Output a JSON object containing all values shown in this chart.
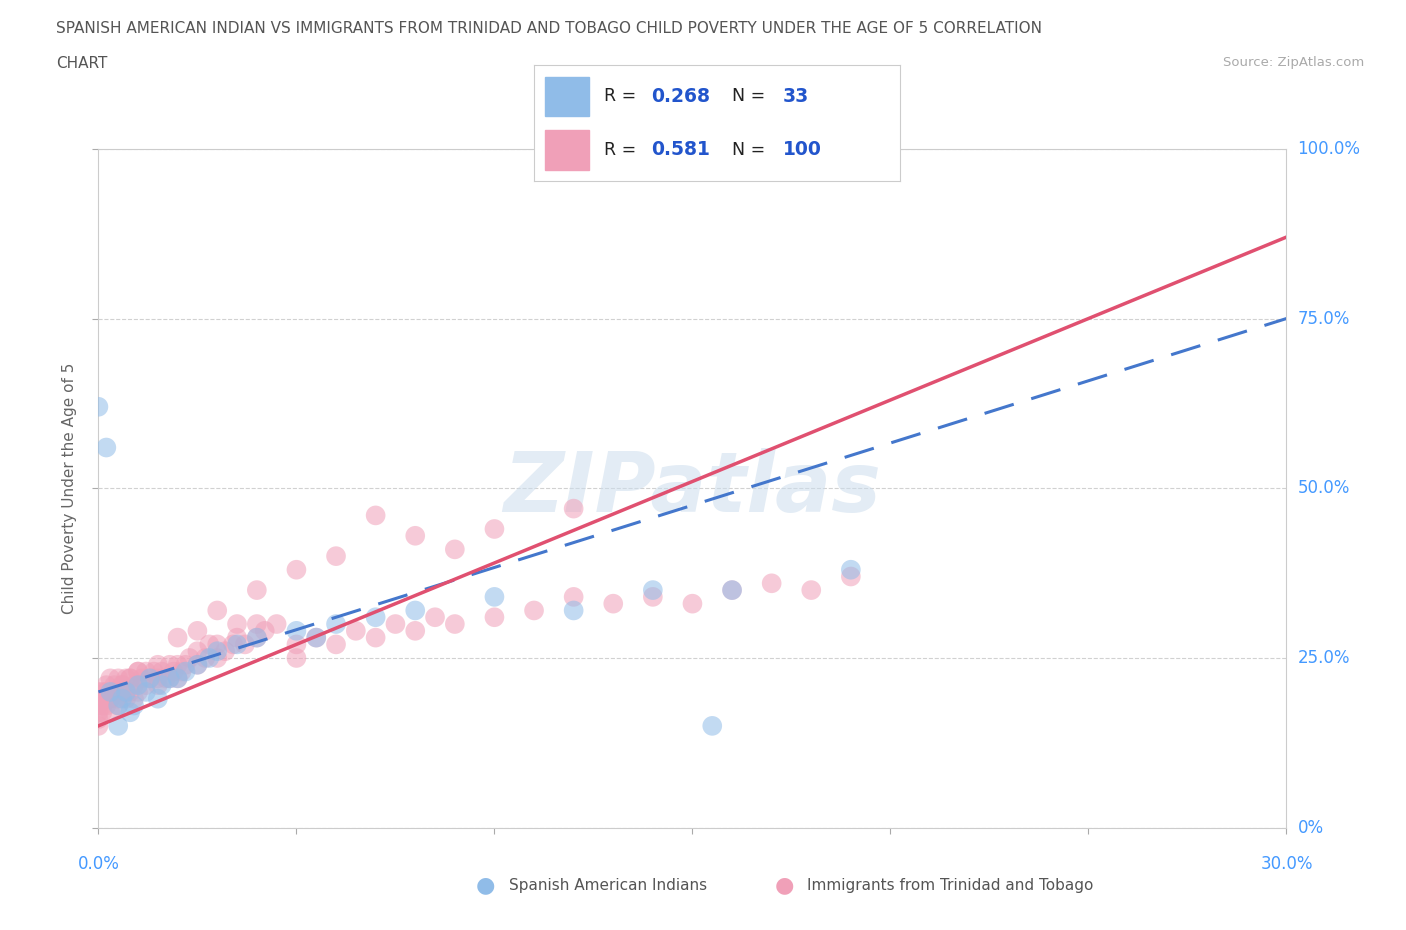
{
  "title_line1": "SPANISH AMERICAN INDIAN VS IMMIGRANTS FROM TRINIDAD AND TOBAGO CHILD POVERTY UNDER THE AGE OF 5 CORRELATION",
  "title_line2": "CHART",
  "source": "Source: ZipAtlas.com",
  "R1": "0.268",
  "N1": "33",
  "R2": "0.581",
  "N2": "100",
  "color1": "#90bce8",
  "color2": "#f0a0b8",
  "line1_color": "#4477cc",
  "line2_color": "#e05070",
  "series1_label": "Spanish American Indians",
  "series2_label": "Immigrants from Trinidad and Tobago",
  "axis_label_color": "#4499ff",
  "title_color": "#555555",
  "watermark_color": "#ccdded",
  "legend_R_N_color": "#2255cc",
  "background": "#ffffff",
  "grid_color": "#cccccc",
  "ylabel": "Child Poverty Under the Age of 5",
  "blue_x": [
    0.0,
    0.002,
    0.003,
    0.005,
    0.005,
    0.006,
    0.007,
    0.008,
    0.009,
    0.01,
    0.012,
    0.013,
    0.015,
    0.016,
    0.018,
    0.02,
    0.022,
    0.025,
    0.028,
    0.03,
    0.035,
    0.04,
    0.05,
    0.055,
    0.06,
    0.07,
    0.08,
    0.1,
    0.12,
    0.14,
    0.155,
    0.16,
    0.19
  ],
  "blue_y": [
    0.62,
    0.56,
    0.2,
    0.18,
    0.15,
    0.19,
    0.2,
    0.17,
    0.18,
    0.21,
    0.2,
    0.22,
    0.19,
    0.21,
    0.22,
    0.22,
    0.23,
    0.24,
    0.25,
    0.26,
    0.27,
    0.28,
    0.29,
    0.28,
    0.3,
    0.31,
    0.32,
    0.34,
    0.32,
    0.35,
    0.15,
    0.35,
    0.38
  ],
  "pink_x": [
    0.0,
    0.0,
    0.0,
    0.0,
    0.001,
    0.001,
    0.002,
    0.002,
    0.003,
    0.003,
    0.004,
    0.004,
    0.005,
    0.005,
    0.006,
    0.006,
    0.007,
    0.007,
    0.008,
    0.008,
    0.009,
    0.009,
    0.01,
    0.01,
    0.011,
    0.012,
    0.012,
    0.013,
    0.014,
    0.015,
    0.015,
    0.016,
    0.017,
    0.018,
    0.018,
    0.019,
    0.02,
    0.02,
    0.021,
    0.022,
    0.023,
    0.025,
    0.025,
    0.027,
    0.028,
    0.03,
    0.03,
    0.032,
    0.034,
    0.035,
    0.037,
    0.04,
    0.04,
    0.042,
    0.045,
    0.05,
    0.05,
    0.055,
    0.06,
    0.065,
    0.07,
    0.075,
    0.08,
    0.085,
    0.09,
    0.1,
    0.11,
    0.12,
    0.13,
    0.14,
    0.15,
    0.16,
    0.17,
    0.18,
    0.19,
    0.1,
    0.12,
    0.04,
    0.05,
    0.06,
    0.07,
    0.08,
    0.09,
    0.03,
    0.035,
    0.025,
    0.02,
    0.015,
    0.01,
    0.008,
    0.006,
    0.004,
    0.003,
    0.002,
    0.001,
    0.0,
    0.0,
    0.001,
    0.003,
    0.005
  ],
  "pink_y": [
    0.2,
    0.19,
    0.18,
    0.17,
    0.2,
    0.19,
    0.21,
    0.2,
    0.22,
    0.19,
    0.21,
    0.2,
    0.22,
    0.18,
    0.21,
    0.2,
    0.22,
    0.19,
    0.22,
    0.2,
    0.21,
    0.19,
    0.23,
    0.2,
    0.22,
    0.21,
    0.23,
    0.22,
    0.23,
    0.22,
    0.21,
    0.23,
    0.22,
    0.24,
    0.22,
    0.23,
    0.24,
    0.22,
    0.23,
    0.24,
    0.25,
    0.24,
    0.26,
    0.25,
    0.27,
    0.25,
    0.27,
    0.26,
    0.27,
    0.28,
    0.27,
    0.28,
    0.3,
    0.29,
    0.3,
    0.25,
    0.27,
    0.28,
    0.27,
    0.29,
    0.28,
    0.3,
    0.29,
    0.31,
    0.3,
    0.31,
    0.32,
    0.34,
    0.33,
    0.34,
    0.33,
    0.35,
    0.36,
    0.35,
    0.37,
    0.44,
    0.47,
    0.35,
    0.38,
    0.4,
    0.46,
    0.43,
    0.41,
    0.32,
    0.3,
    0.29,
    0.28,
    0.24,
    0.23,
    0.22,
    0.21,
    0.2,
    0.19,
    0.18,
    0.17,
    0.16,
    0.15,
    0.18,
    0.17,
    0.19
  ]
}
